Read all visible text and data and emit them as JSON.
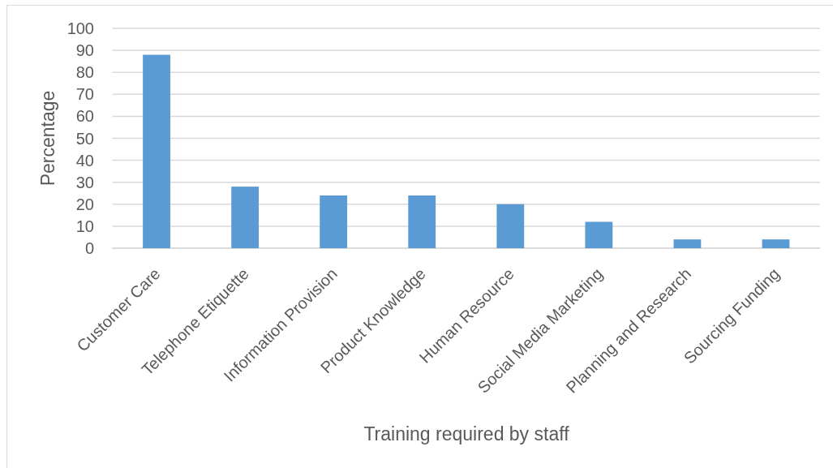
{
  "chart_data": {
    "type": "bar",
    "xlabel": "Training required by staff",
    "ylabel": "Percentage",
    "categories": [
      "Customer Care",
      "Telephone Etiquette",
      "Information Provision",
      "Product Knowledge",
      "Human Resource",
      "Social Media Marketing",
      "Planning and Research",
      "Sourcing Funding"
    ],
    "values": [
      88,
      28,
      24,
      24,
      20,
      12,
      4,
      4
    ],
    "color": "#5b9bd5",
    "ylim": [
      0,
      100
    ],
    "yticks": [
      0,
      10,
      20,
      30,
      40,
      50,
      60,
      70,
      80,
      90,
      100
    ],
    "grid": "y"
  }
}
